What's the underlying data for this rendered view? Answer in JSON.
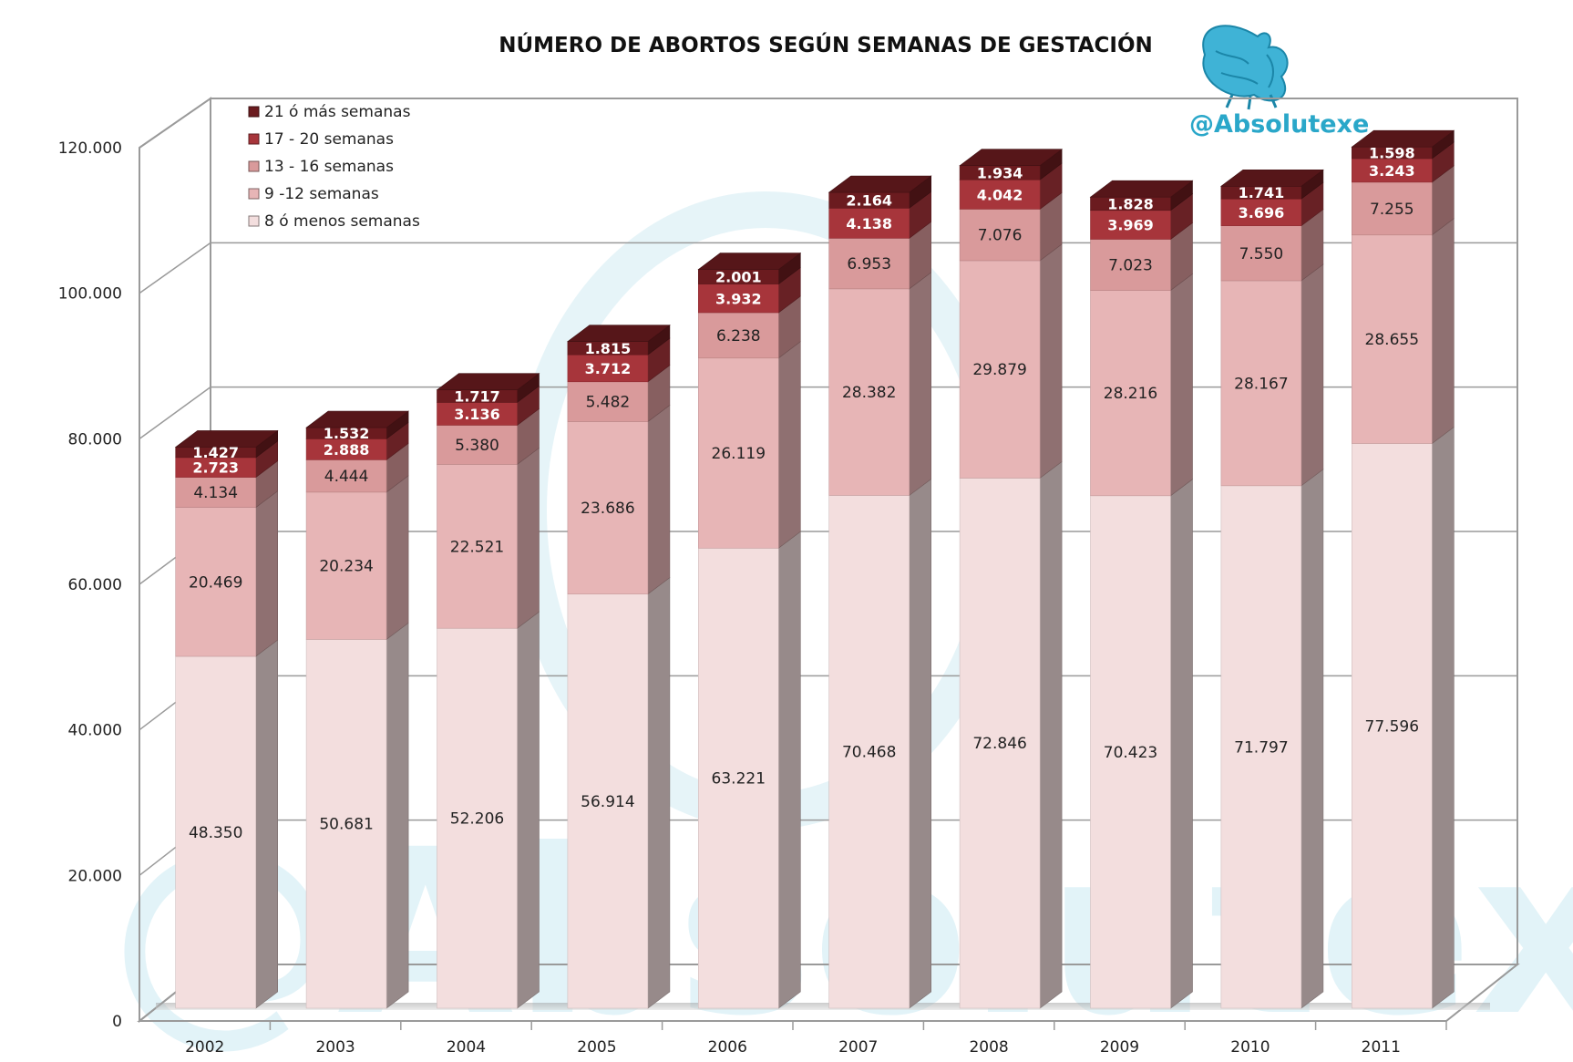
{
  "chart_data": {
    "type": "bar",
    "stacked": true,
    "three_d": true,
    "title": "NÚMERO DE ABORTOS SEGÚN SEMANAS DE GESTACIÓN",
    "xlabel": "",
    "ylabel": "",
    "categories": [
      "2002",
      "2003",
      "2004",
      "2005",
      "2006",
      "2007",
      "2008",
      "2009",
      "2010",
      "2011"
    ],
    "ylim": [
      0,
      120000
    ],
    "yticks": [
      0,
      20000,
      40000,
      60000,
      80000,
      100000,
      120000
    ],
    "ytick_labels": [
      "0",
      "20.000",
      "40.000",
      "60.000",
      "80.000",
      "100.000",
      "120.000"
    ],
    "grid": true,
    "legend_position": "top-left",
    "series": [
      {
        "name": "8 ó menos semanas",
        "color": "#f3dede",
        "values": [
          48350,
          50681,
          52206,
          56914,
          63221,
          70468,
          72846,
          70423,
          71797,
          77596
        ],
        "labels": [
          "48.350",
          "50.681",
          "52.206",
          "56.914",
          "63.221",
          "70.468",
          "72.846",
          "70.423",
          "71.797",
          "77.596"
        ]
      },
      {
        "name": "9 -12 semanas",
        "color": "#e7b5b6",
        "values": [
          20469,
          20234,
          22521,
          23686,
          26119,
          28382,
          29879,
          28216,
          28167,
          28655
        ],
        "labels": [
          "20.469",
          "20.234",
          "22.521",
          "23.686",
          "26.119",
          "28.382",
          "29.879",
          "28.216",
          "28.167",
          "28.655"
        ]
      },
      {
        "name": "13 - 16 semanas",
        "color": "#d99a9b",
        "values": [
          4134,
          4444,
          5380,
          5482,
          6238,
          6953,
          7076,
          7023,
          7550,
          7255
        ],
        "labels": [
          "4.134",
          "4.444",
          "5.380",
          "5.482",
          "6.238",
          "6.953",
          "7.076",
          "7.023",
          "7.550",
          "7.255"
        ]
      },
      {
        "name": "17 - 20 semanas",
        "color": "#a7353b",
        "values": [
          2723,
          2888,
          3136,
          3712,
          3932,
          4138,
          4042,
          3969,
          3696,
          3243
        ],
        "labels": [
          "2.723",
          "2.888",
          "3.136",
          "3.712",
          "3.932",
          "4.138",
          "4.042",
          "3.969",
          "3.696",
          "3.243"
        ]
      },
      {
        "name": "21 ó más semanas",
        "color": "#6b1b1f",
        "values": [
          1427,
          1532,
          1717,
          1815,
          2001,
          2164,
          1934,
          1828,
          1741,
          1598
        ],
        "labels": [
          "1.427",
          "1.532",
          "1.717",
          "1.815",
          "2.001",
          "2.164",
          "1.934",
          "1.828",
          "1.741",
          "1.598"
        ]
      }
    ],
    "legend_order": [
      "21 ó más semanas",
      "17 - 20 semanas",
      "13 - 16 semanas",
      "9 -12 semanas",
      "8 ó menos semanas"
    ]
  },
  "branding": {
    "handle": "@Absolutexe",
    "watermark_text": "@Absolutexe",
    "logo_icon": "griffin-logo-icon",
    "color": "#2aa7c9"
  }
}
